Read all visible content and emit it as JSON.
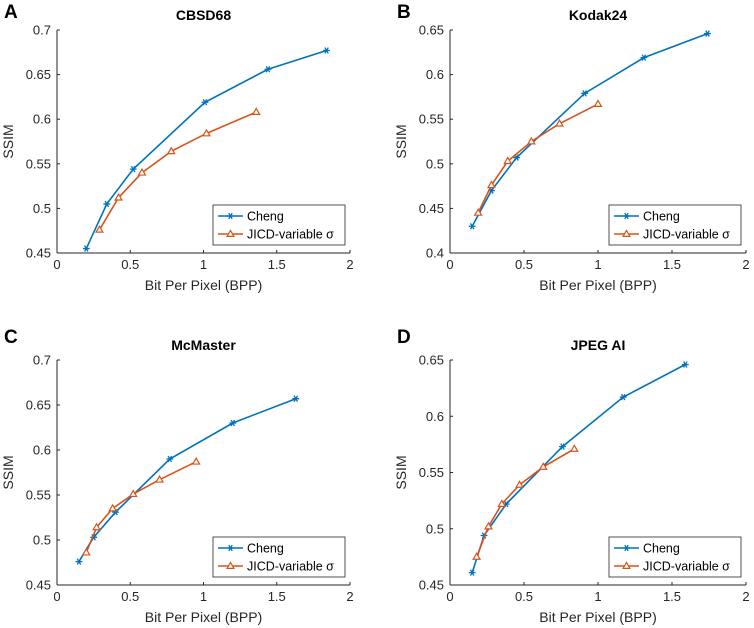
{
  "chart_data": [
    {
      "panel": "A",
      "type": "line",
      "title": "CBSD68",
      "xlabel": "Bit Per Pixel (BPP)",
      "ylabel": "SSIM",
      "xlim": [
        0,
        2
      ],
      "ylim": [
        0.45,
        0.7
      ],
      "xticks": [
        "0",
        "0.5",
        "1",
        "1.5",
        "2"
      ],
      "yticks": [
        "0.45",
        "0.5",
        "0.55",
        "0.6",
        "0.65",
        "0.7"
      ],
      "legend_position": "bottom-right",
      "series": [
        {
          "name": "Cheng",
          "marker": "star",
          "color": "#0072BD",
          "x": [
            0.2,
            0.34,
            0.52,
            1.01,
            1.44,
            1.84
          ],
          "y": [
            0.455,
            0.505,
            0.544,
            0.619,
            0.656,
            0.677
          ]
        },
        {
          "name": "JICD-variable σ",
          "marker": "triangle",
          "color": "#D95319",
          "x": [
            0.29,
            0.42,
            0.58,
            0.78,
            1.02,
            1.36
          ],
          "y": [
            0.476,
            0.512,
            0.54,
            0.564,
            0.584,
            0.608
          ]
        }
      ]
    },
    {
      "panel": "B",
      "type": "line",
      "title": "Kodak24",
      "xlabel": "Bit Per Pixel (BPP)",
      "ylabel": "SSIM",
      "xlim": [
        0,
        2
      ],
      "ylim": [
        0.4,
        0.65
      ],
      "xticks": [
        "0",
        "0.5",
        "1",
        "1.5",
        "2"
      ],
      "yticks": [
        "0.4",
        "0.45",
        "0.5",
        "0.55",
        "0.6",
        "0.65"
      ],
      "legend_position": "bottom-right",
      "series": [
        {
          "name": "Cheng",
          "marker": "star",
          "color": "#0072BD",
          "x": [
            0.15,
            0.28,
            0.45,
            0.91,
            1.31,
            1.74
          ],
          "y": [
            0.43,
            0.47,
            0.507,
            0.579,
            0.619,
            0.646
          ]
        },
        {
          "name": "JICD-variable σ",
          "marker": "triangle",
          "color": "#D95319",
          "x": [
            0.19,
            0.28,
            0.39,
            0.55,
            0.74,
            1.0
          ],
          "y": [
            0.445,
            0.476,
            0.503,
            0.525,
            0.545,
            0.567
          ]
        }
      ]
    },
    {
      "panel": "C",
      "type": "line",
      "title": "McMaster",
      "xlabel": "Bit Per Pixel (BPP)",
      "ylabel": "SSIM",
      "xlim": [
        0,
        2
      ],
      "ylim": [
        0.45,
        0.7
      ],
      "xticks": [
        "0",
        "0.5",
        "1",
        "1.5",
        "2"
      ],
      "yticks": [
        "0.45",
        "0.5",
        "0.55",
        "0.6",
        "0.65",
        "0.7"
      ],
      "legend_position": "bottom-right",
      "series": [
        {
          "name": "Cheng",
          "marker": "star",
          "color": "#0072BD",
          "x": [
            0.15,
            0.25,
            0.4,
            0.77,
            1.2,
            1.63
          ],
          "y": [
            0.476,
            0.503,
            0.531,
            0.59,
            0.63,
            0.657
          ]
        },
        {
          "name": "JICD-variable σ",
          "marker": "triangle",
          "color": "#D95319",
          "x": [
            0.2,
            0.27,
            0.38,
            0.52,
            0.7,
            0.95
          ],
          "y": [
            0.486,
            0.514,
            0.535,
            0.551,
            0.567,
            0.587
          ]
        }
      ]
    },
    {
      "panel": "D",
      "type": "line",
      "title": "JPEG AI",
      "xlabel": "Bit Per Pixel (BPP)",
      "ylabel": "SSIM",
      "xlim": [
        0,
        2
      ],
      "ylim": [
        0.45,
        0.65
      ],
      "xticks": [
        "0",
        "0.5",
        "1",
        "1.5",
        "2"
      ],
      "yticks": [
        "0.45",
        "0.5",
        "0.55",
        "0.6",
        "0.65"
      ],
      "legend_position": "bottom-right",
      "series": [
        {
          "name": "Cheng",
          "marker": "star",
          "color": "#0072BD",
          "x": [
            0.15,
            0.23,
            0.38,
            0.76,
            1.17,
            1.59
          ],
          "y": [
            0.461,
            0.494,
            0.522,
            0.573,
            0.617,
            0.646
          ]
        },
        {
          "name": "JICD-variable σ",
          "marker": "triangle",
          "color": "#D95319",
          "x": [
            0.18,
            0.26,
            0.35,
            0.47,
            0.63,
            0.84
          ],
          "y": [
            0.475,
            0.502,
            0.522,
            0.539,
            0.555,
            0.571
          ]
        }
      ]
    }
  ]
}
